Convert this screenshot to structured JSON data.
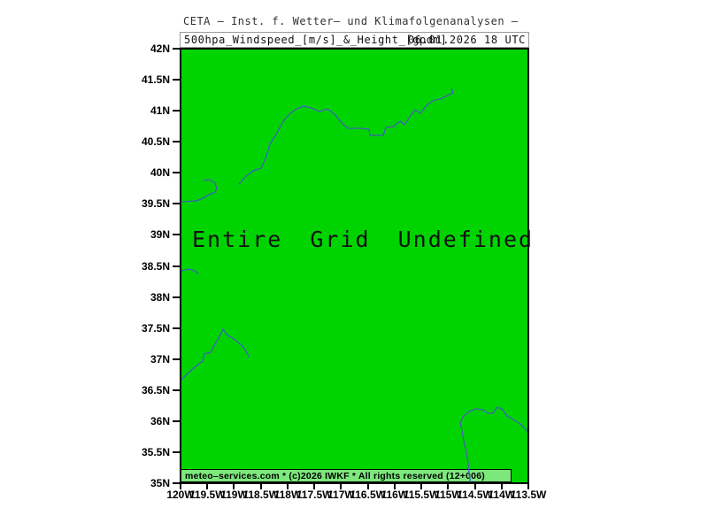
{
  "header": {
    "institute_line": "CETA – Inst. f. Wetter– und Klimafolgenanalysen –",
    "parameter_line": "500hpa_Windspeed_[m/s]_&_Height_[gpdm]",
    "valid_time": "06.01.2026 18 UTC"
  },
  "map": {
    "status_message": "Entire Grid Undefined",
    "copyright_line": "meteo–services.com * (c)2026 IWKF * All rights reserved (12+006)",
    "colors": {
      "land_fill": "#00d400",
      "boundary_line": "#4060b8",
      "copyright_bg": "#7ce87c",
      "frame": "#000000"
    },
    "boundary_polylines": [
      [
        [
          65,
          152
        ],
        [
          73,
          143
        ],
        [
          81,
          137
        ],
        [
          90,
          134
        ],
        [
          95,
          123
        ],
        [
          100,
          107
        ],
        [
          108,
          94
        ],
        [
          115,
          81
        ],
        [
          122,
          73
        ],
        [
          130,
          67
        ],
        [
          138,
          64
        ],
        [
          147,
          66
        ],
        [
          156,
          70
        ],
        [
          165,
          67
        ],
        [
          174,
          74
        ],
        [
          182,
          84
        ],
        [
          188,
          89
        ],
        [
          204,
          89
        ],
        [
          212,
          90
        ],
        [
          213,
          97
        ],
        [
          228,
          97
        ],
        [
          231,
          88
        ],
        [
          240,
          87
        ],
        [
          244,
          83
        ],
        [
          248,
          81
        ],
        [
          252,
          85
        ],
        [
          258,
          76
        ],
        [
          264,
          68
        ],
        [
          270,
          72
        ],
        [
          278,
          62
        ],
        [
          286,
          57
        ],
        [
          293,
          56
        ],
        [
          300,
          52
        ],
        [
          307,
          49
        ],
        [
          305,
          44
        ]
      ],
      [
        [
          0,
          172
        ],
        [
          17,
          171
        ],
        [
          24,
          168
        ],
        [
          31,
          164
        ],
        [
          38,
          161
        ],
        [
          40,
          157
        ],
        [
          38,
          151
        ],
        [
          32,
          147
        ],
        [
          25,
          148
        ]
      ],
      [
        [
          0,
          250
        ],
        [
          8,
          248
        ],
        [
          15,
          250
        ],
        [
          19,
          253
        ]
      ],
      [
        [
          0,
          373
        ],
        [
          7,
          366
        ],
        [
          16,
          358
        ],
        [
          24,
          352
        ],
        [
          26,
          344
        ],
        [
          33,
          342
        ],
        [
          36,
          336
        ],
        [
          42,
          326
        ],
        [
          47,
          316
        ],
        [
          52,
          323
        ],
        [
          58,
          326
        ],
        [
          64,
          331
        ],
        [
          69,
          335
        ],
        [
          74,
          343
        ],
        [
          76,
          347
        ]
      ],
      [
        [
          392,
          432
        ],
        [
          383,
          423
        ],
        [
          375,
          418
        ],
        [
          368,
          414
        ],
        [
          363,
          407
        ],
        [
          357,
          404
        ],
        [
          352,
          411
        ],
        [
          346,
          411
        ],
        [
          341,
          407
        ],
        [
          333,
          406
        ],
        [
          325,
          409
        ],
        [
          318,
          415
        ],
        [
          315,
          422
        ],
        [
          317,
          431
        ],
        [
          319,
          442
        ],
        [
          322,
          455
        ],
        [
          324,
          468
        ],
        [
          325,
          479
        ],
        [
          327,
          491
        ]
      ]
    ]
  },
  "axes": {
    "y_tick_labels": [
      "42N",
      "41.5N",
      "41N",
      "40.5N",
      "40N",
      "39.5N",
      "39N",
      "38.5N",
      "38N",
      "37.5N",
      "37N",
      "36.5N",
      "36N",
      "35.5N",
      "35N"
    ],
    "x_tick_labels": [
      "120W",
      "119.5W",
      "119W",
      "118.5W",
      "118W",
      "117.5W",
      "117W",
      "116.5W",
      "116W",
      "115.5W",
      "115W",
      "114.5W",
      "114W",
      "113.5W"
    ]
  }
}
